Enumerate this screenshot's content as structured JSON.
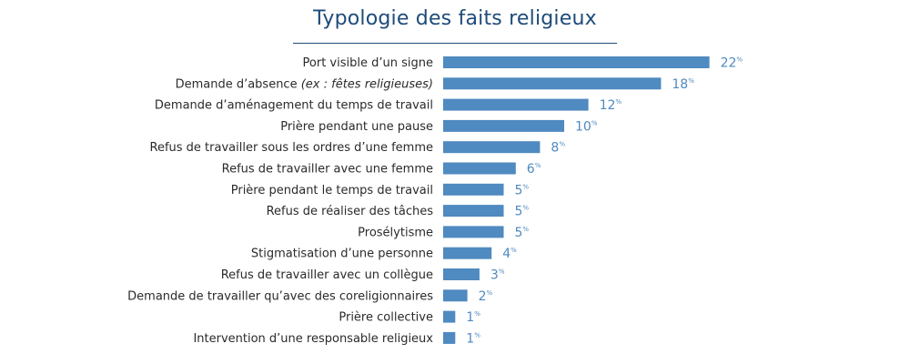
{
  "colors": {
    "bar": "#4f8ac0",
    "value": "#4f8ac0",
    "title": "#1e4b7a"
  },
  "chart_data": {
    "type": "bar",
    "orientation": "horizontal",
    "title": "Typologie des faits religieux",
    "value_unit": "%",
    "categories": [
      {
        "main": "Port visible d’un signe",
        "italic": ""
      },
      {
        "main": "Demande d’absence ",
        "italic": "(ex : fêtes religieuses)"
      },
      {
        "main": "Demande d’aménagement du temps de travail",
        "italic": ""
      },
      {
        "main": "Prière pendant une pause",
        "italic": ""
      },
      {
        "main": "Refus de travailler sous les ordres d’une femme",
        "italic": ""
      },
      {
        "main": "Refus de travailler avec une femme",
        "italic": ""
      },
      {
        "main": "Prière pendant le temps de travail",
        "italic": ""
      },
      {
        "main": "Refus de réaliser des tâches",
        "italic": ""
      },
      {
        "main": "Prosélytisme",
        "italic": ""
      },
      {
        "main": "Stigmatisation d’une personne",
        "italic": ""
      },
      {
        "main": "Refus de travailler avec un collègue",
        "italic": ""
      },
      {
        "main": "Demande de travailler qu’avec des coreligionnaires",
        "italic": ""
      },
      {
        "main": "Prière collective",
        "italic": ""
      },
      {
        "main": "Intervention d’une responsable religieux",
        "italic": ""
      }
    ],
    "values": [
      22,
      18,
      12,
      10,
      8,
      6,
      5,
      5,
      5,
      4,
      3,
      2,
      1,
      1
    ],
    "xlim": [
      0,
      22
    ],
    "grid": false,
    "legend": "none"
  }
}
